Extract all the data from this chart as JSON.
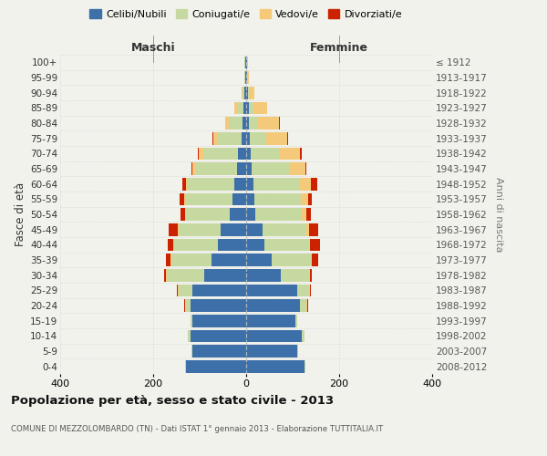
{
  "age_groups": [
    "0-4",
    "5-9",
    "10-14",
    "15-19",
    "20-24",
    "25-29",
    "30-34",
    "35-39",
    "40-44",
    "45-49",
    "50-54",
    "55-59",
    "60-64",
    "65-69",
    "70-74",
    "75-79",
    "80-84",
    "85-89",
    "90-94",
    "95-99",
    "100+"
  ],
  "birth_years": [
    "2008-2012",
    "2003-2007",
    "1998-2002",
    "1993-1997",
    "1988-1992",
    "1983-1987",
    "1978-1982",
    "1973-1977",
    "1968-1972",
    "1963-1967",
    "1958-1962",
    "1953-1957",
    "1948-1952",
    "1943-1947",
    "1938-1942",
    "1933-1937",
    "1928-1932",
    "1923-1927",
    "1918-1922",
    "1913-1917",
    "≤ 1912"
  ],
  "male": {
    "celibi": [
      130,
      115,
      120,
      115,
      120,
      115,
      90,
      75,
      60,
      55,
      35,
      30,
      25,
      20,
      18,
      10,
      8,
      5,
      3,
      2,
      2
    ],
    "coniugati": [
      2,
      2,
      5,
      5,
      10,
      30,
      80,
      85,
      95,
      90,
      95,
      100,
      100,
      90,
      75,
      50,
      30,
      15,
      5,
      2,
      1
    ],
    "vedovi": [
      0,
      0,
      0,
      0,
      1,
      2,
      2,
      2,
      2,
      2,
      2,
      3,
      5,
      5,
      8,
      10,
      8,
      5,
      2,
      0,
      0
    ],
    "divorziati": [
      0,
      0,
      0,
      0,
      2,
      3,
      5,
      10,
      12,
      20,
      10,
      10,
      8,
      3,
      3,
      2,
      0,
      0,
      0,
      0,
      0
    ]
  },
  "female": {
    "nubili": [
      125,
      110,
      120,
      105,
      115,
      110,
      75,
      55,
      40,
      35,
      20,
      18,
      15,
      12,
      10,
      8,
      5,
      5,
      3,
      2,
      2
    ],
    "coniugate": [
      2,
      2,
      5,
      5,
      15,
      25,
      60,
      85,
      95,
      95,
      100,
      100,
      100,
      80,
      60,
      35,
      20,
      10,
      5,
      2,
      1
    ],
    "vedove": [
      0,
      0,
      0,
      0,
      2,
      2,
      2,
      2,
      3,
      5,
      10,
      15,
      25,
      35,
      45,
      45,
      45,
      30,
      10,
      2,
      0
    ],
    "divorziate": [
      0,
      0,
      0,
      0,
      2,
      3,
      5,
      12,
      20,
      20,
      10,
      8,
      12,
      3,
      5,
      2,
      2,
      0,
      0,
      0,
      0
    ]
  },
  "colors": {
    "celibi_nubili": "#3d6fa8",
    "coniugati": "#c5d9a0",
    "vedovi": "#f5c97a",
    "divorziati": "#cc2200"
  },
  "xlim": 400,
  "title": "Popolazione per età, sesso e stato civile - 2013",
  "subtitle": "COMUNE DI MEZZOLOMBARDO (TN) - Dati ISTAT 1° gennaio 2013 - Elaborazione TUTTITALIA.IT",
  "ylabel": "Fasce di età",
  "ylabel_right": "Anni di nascita",
  "xlabel_left": "Maschi",
  "xlabel_right": "Femmine",
  "bg_color": "#f2f2ed",
  "grid_color": "#cccccc",
  "legend_labels": [
    "Celibi/Nubili",
    "Coniugati/e",
    "Vedovi/e",
    "Divorziati/e"
  ]
}
